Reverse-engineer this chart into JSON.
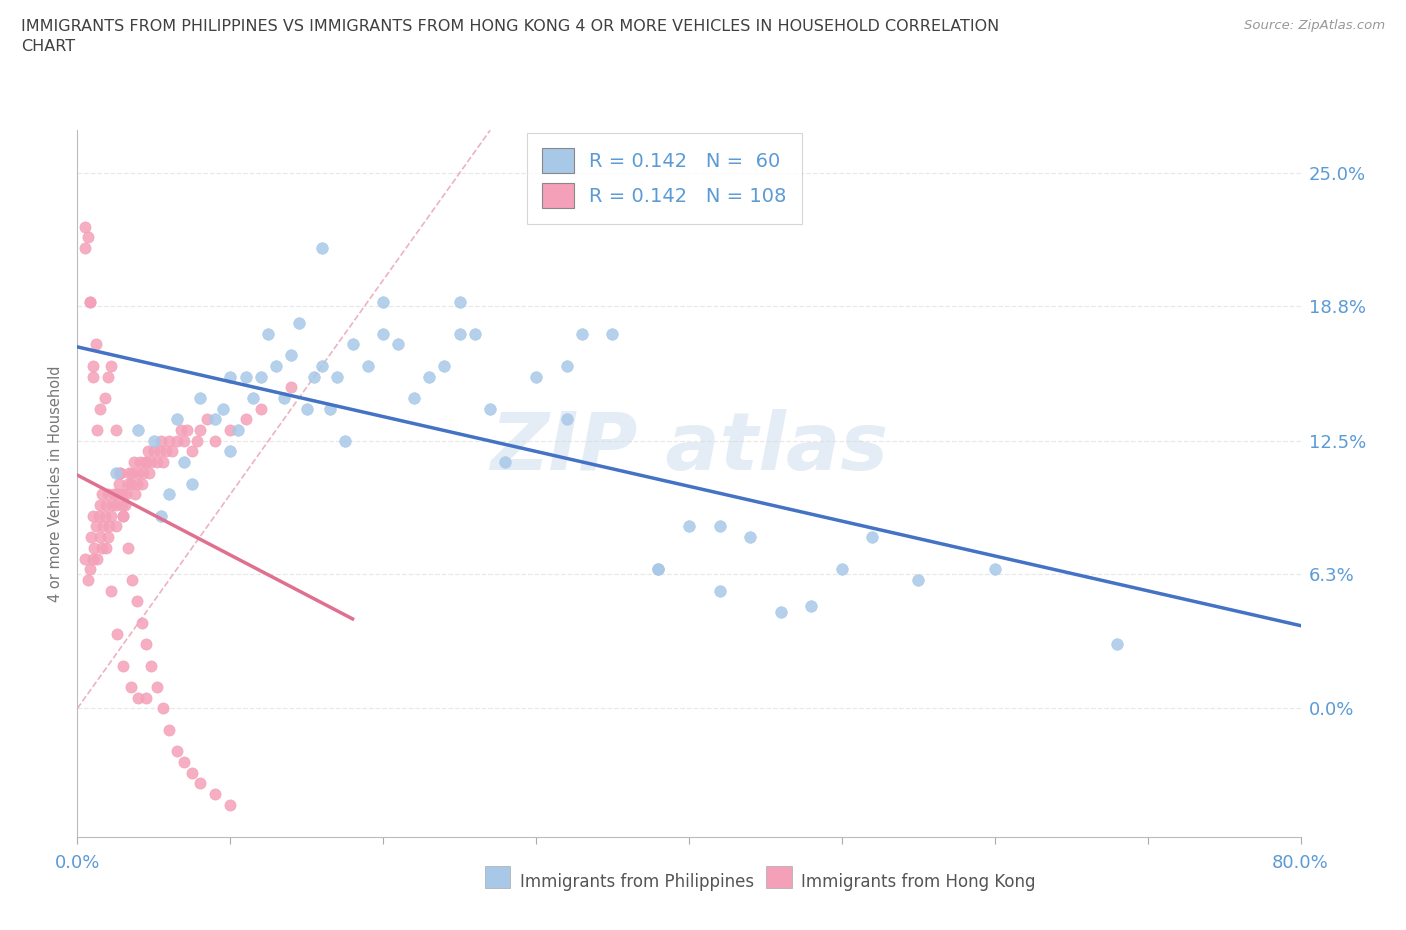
{
  "title_line1": "IMMIGRANTS FROM PHILIPPINES VS IMMIGRANTS FROM HONG KONG 4 OR MORE VEHICLES IN HOUSEHOLD CORRELATION",
  "title_line2": "CHART",
  "source_text": "Source: ZipAtlas.com",
  "ylabel": "4 or more Vehicles in Household",
  "color_phil": "#a8c8e8",
  "color_hk": "#f4a0b8",
  "color_phil_line": "#4472c4",
  "color_hk_line": "#e07090",
  "color_diagonal": "#e8a0b0",
  "color_axis": "#5b9bd5",
  "color_title": "#404040",
  "color_source": "#999999",
  "color_grid": "#e8e8e8",
  "xmin": 0.0,
  "xmax": 0.8,
  "ymin": -0.06,
  "ymax": 0.27,
  "ytick_vals": [
    0.0,
    0.063,
    0.125,
    0.188,
    0.25
  ],
  "ytick_labels": [
    "0.0%",
    "6.3%",
    "12.5%",
    "18.8%",
    "25.0%"
  ],
  "legend_text_1": "R = 0.142   N =  60",
  "legend_text_2": "R = 0.142   N = 108",
  "bottom_label_phil": "Immigrants from Philippines",
  "bottom_label_hk": "Immigrants from Hong Kong",
  "phil_x": [
    0.025,
    0.04,
    0.05,
    0.055,
    0.06,
    0.065,
    0.07,
    0.075,
    0.08,
    0.09,
    0.095,
    0.1,
    0.1,
    0.105,
    0.11,
    0.115,
    0.12,
    0.125,
    0.13,
    0.135,
    0.14,
    0.145,
    0.15,
    0.155,
    0.16,
    0.165,
    0.17,
    0.175,
    0.18,
    0.19,
    0.2,
    0.21,
    0.22,
    0.23,
    0.24,
    0.25,
    0.26,
    0.27,
    0.28,
    0.3,
    0.32,
    0.33,
    0.35,
    0.38,
    0.4,
    0.42,
    0.44,
    0.46,
    0.5,
    0.52,
    0.55,
    0.6,
    0.25,
    0.38,
    0.16,
    0.2,
    0.68,
    0.32,
    0.42,
    0.48
  ],
  "phil_y": [
    0.11,
    0.13,
    0.125,
    0.09,
    0.1,
    0.135,
    0.115,
    0.105,
    0.145,
    0.135,
    0.14,
    0.12,
    0.155,
    0.13,
    0.155,
    0.145,
    0.155,
    0.175,
    0.16,
    0.145,
    0.165,
    0.18,
    0.14,
    0.155,
    0.16,
    0.14,
    0.155,
    0.125,
    0.17,
    0.16,
    0.19,
    0.17,
    0.145,
    0.155,
    0.16,
    0.175,
    0.175,
    0.14,
    0.115,
    0.155,
    0.16,
    0.175,
    0.175,
    0.065,
    0.085,
    0.085,
    0.08,
    0.045,
    0.065,
    0.08,
    0.06,
    0.065,
    0.19,
    0.065,
    0.215,
    0.175,
    0.03,
    0.135,
    0.055,
    0.048
  ],
  "hk_x": [
    0.005,
    0.007,
    0.008,
    0.009,
    0.01,
    0.01,
    0.011,
    0.012,
    0.013,
    0.014,
    0.015,
    0.015,
    0.016,
    0.017,
    0.018,
    0.019,
    0.02,
    0.02,
    0.021,
    0.022,
    0.023,
    0.024,
    0.025,
    0.025,
    0.026,
    0.027,
    0.028,
    0.029,
    0.03,
    0.03,
    0.031,
    0.032,
    0.033,
    0.034,
    0.035,
    0.036,
    0.037,
    0.038,
    0.039,
    0.04,
    0.041,
    0.042,
    0.043,
    0.044,
    0.045,
    0.046,
    0.047,
    0.048,
    0.05,
    0.052,
    0.054,
    0.055,
    0.056,
    0.058,
    0.06,
    0.062,
    0.065,
    0.068,
    0.07,
    0.072,
    0.075,
    0.078,
    0.08,
    0.085,
    0.09,
    0.1,
    0.11,
    0.12,
    0.14,
    0.005,
    0.007,
    0.008,
    0.01,
    0.012,
    0.015,
    0.018,
    0.02,
    0.022,
    0.025,
    0.028,
    0.03,
    0.033,
    0.036,
    0.039,
    0.042,
    0.045,
    0.048,
    0.052,
    0.056,
    0.06,
    0.065,
    0.07,
    0.075,
    0.08,
    0.09,
    0.1,
    0.005,
    0.008,
    0.01,
    0.013,
    0.016,
    0.019,
    0.022,
    0.026,
    0.03,
    0.035,
    0.04,
    0.045
  ],
  "hk_y": [
    0.07,
    0.06,
    0.065,
    0.08,
    0.07,
    0.09,
    0.075,
    0.085,
    0.07,
    0.09,
    0.08,
    0.095,
    0.075,
    0.085,
    0.09,
    0.095,
    0.08,
    0.1,
    0.085,
    0.09,
    0.095,
    0.1,
    0.085,
    0.095,
    0.1,
    0.105,
    0.11,
    0.095,
    0.09,
    0.1,
    0.095,
    0.1,
    0.105,
    0.11,
    0.105,
    0.11,
    0.115,
    0.1,
    0.105,
    0.11,
    0.115,
    0.105,
    0.11,
    0.115,
    0.115,
    0.12,
    0.11,
    0.115,
    0.12,
    0.115,
    0.12,
    0.125,
    0.115,
    0.12,
    0.125,
    0.12,
    0.125,
    0.13,
    0.125,
    0.13,
    0.12,
    0.125,
    0.13,
    0.135,
    0.125,
    0.13,
    0.135,
    0.14,
    0.15,
    0.215,
    0.22,
    0.19,
    0.155,
    0.17,
    0.14,
    0.145,
    0.155,
    0.16,
    0.13,
    0.11,
    0.09,
    0.075,
    0.06,
    0.05,
    0.04,
    0.03,
    0.02,
    0.01,
    0.0,
    -0.01,
    -0.02,
    -0.025,
    -0.03,
    -0.035,
    -0.04,
    -0.045,
    0.225,
    0.19,
    0.16,
    0.13,
    0.1,
    0.075,
    0.055,
    0.035,
    0.02,
    0.01,
    0.005,
    0.005
  ]
}
